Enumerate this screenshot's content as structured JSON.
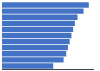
{
  "chart_data": {
    "type": "bar",
    "orientation": "horizontal",
    "categories": [
      null,
      null,
      null,
      null,
      null,
      null,
      null,
      null,
      null,
      null,
      null
    ],
    "values": [
      1000,
      940,
      870,
      840,
      820,
      800,
      780,
      760,
      740,
      710,
      590
    ],
    "color": "#4472c4",
    "xlim": [
      0,
      1060
    ],
    "grid": false,
    "tick_labels": false
  }
}
